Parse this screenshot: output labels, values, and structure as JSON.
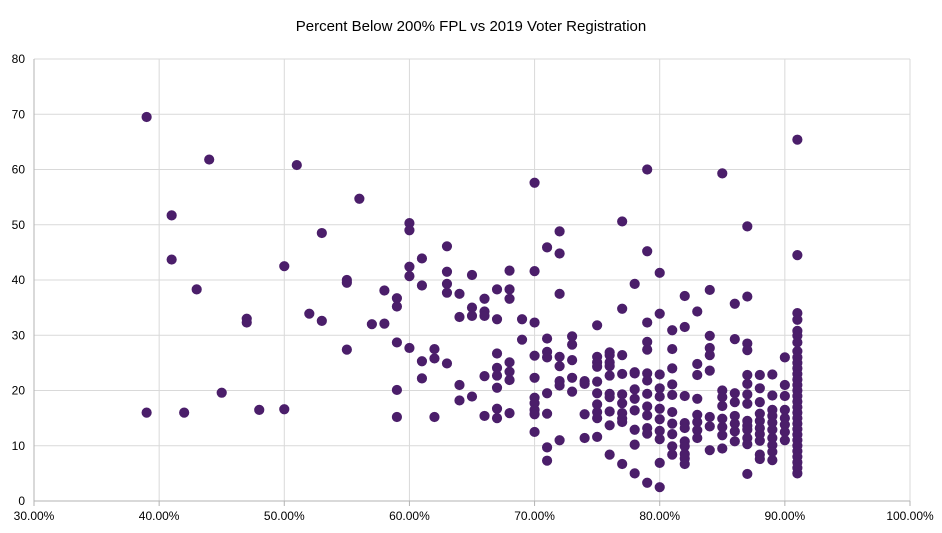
{
  "chart_data": {
    "type": "scatter",
    "title": "Percent Below 200% FPL vs 2019 Voter Registration",
    "xlabel": "",
    "ylabel": "",
    "xlim": [
      0.3,
      1.0
    ],
    "ylim": [
      0,
      80
    ],
    "x_ticks": [
      0.3,
      0.4,
      0.5,
      0.6,
      0.7,
      0.8,
      0.9,
      1.0
    ],
    "x_tick_labels": [
      "30.00%",
      "40.00%",
      "50.00%",
      "60.00%",
      "70.00%",
      "80.00%",
      "90.00%",
      "100.00%"
    ],
    "y_ticks": [
      0,
      10,
      20,
      30,
      40,
      50,
      60,
      70,
      80
    ],
    "y_tick_labels": [
      "0",
      "10",
      "20",
      "30",
      "40",
      "50",
      "60",
      "70",
      "80"
    ],
    "grid": true,
    "legend": "none",
    "marker_color": "#4b1e6a",
    "series": [
      {
        "points": [
          [
            0.39,
            69.5
          ],
          [
            0.39,
            16
          ],
          [
            0.41,
            51.7
          ],
          [
            0.41,
            43.7
          ],
          [
            0.42,
            16
          ],
          [
            0.43,
            38.3
          ],
          [
            0.44,
            61.8
          ],
          [
            0.45,
            19.6
          ],
          [
            0.47,
            33
          ],
          [
            0.47,
            32.3
          ],
          [
            0.48,
            16.5
          ],
          [
            0.5,
            42.5
          ],
          [
            0.5,
            16.6
          ],
          [
            0.51,
            60.8
          ],
          [
            0.52,
            33.9
          ],
          [
            0.53,
            48.5
          ],
          [
            0.53,
            32.6
          ],
          [
            0.55,
            40
          ],
          [
            0.55,
            39.5
          ],
          [
            0.55,
            27.4
          ],
          [
            0.56,
            54.7
          ],
          [
            0.57,
            32
          ],
          [
            0.58,
            38.1
          ],
          [
            0.58,
            32.1
          ],
          [
            0.59,
            36.7
          ],
          [
            0.59,
            35.2
          ],
          [
            0.59,
            28.7
          ],
          [
            0.59,
            20.1
          ],
          [
            0.59,
            15.2
          ],
          [
            0.6,
            50.3
          ],
          [
            0.6,
            49
          ],
          [
            0.6,
            42.4
          ],
          [
            0.6,
            40.7
          ],
          [
            0.6,
            27.7
          ],
          [
            0.61,
            43.9
          ],
          [
            0.61,
            39
          ],
          [
            0.61,
            25.3
          ],
          [
            0.61,
            22.2
          ],
          [
            0.62,
            27.5
          ],
          [
            0.62,
            25.8
          ],
          [
            0.62,
            15.2
          ],
          [
            0.63,
            46.1
          ],
          [
            0.63,
            41.5
          ],
          [
            0.63,
            39.3
          ],
          [
            0.63,
            37.7
          ],
          [
            0.63,
            24.9
          ],
          [
            0.64,
            37.5
          ],
          [
            0.64,
            33.3
          ],
          [
            0.64,
            21
          ],
          [
            0.64,
            18.2
          ],
          [
            0.65,
            40.9
          ],
          [
            0.65,
            35
          ],
          [
            0.65,
            33.5
          ],
          [
            0.65,
            18.9
          ],
          [
            0.66,
            36.6
          ],
          [
            0.66,
            34.3
          ],
          [
            0.66,
            33.5
          ],
          [
            0.66,
            22.6
          ],
          [
            0.66,
            15.4
          ],
          [
            0.67,
            38.3
          ],
          [
            0.67,
            32.9
          ],
          [
            0.67,
            26.7
          ],
          [
            0.67,
            24.1
          ],
          [
            0.67,
            22.7
          ],
          [
            0.67,
            20.5
          ],
          [
            0.67,
            16.7
          ],
          [
            0.67,
            15
          ],
          [
            0.68,
            41.7
          ],
          [
            0.68,
            38.3
          ],
          [
            0.68,
            36.6
          ],
          [
            0.68,
            25.1
          ],
          [
            0.68,
            23.4
          ],
          [
            0.68,
            21.9
          ],
          [
            0.68,
            15.9
          ],
          [
            0.69,
            32.9
          ],
          [
            0.69,
            29.2
          ],
          [
            0.7,
            57.6
          ],
          [
            0.7,
            41.6
          ],
          [
            0.7,
            32.3
          ],
          [
            0.7,
            26.3
          ],
          [
            0.7,
            22.3
          ],
          [
            0.7,
            18.7
          ],
          [
            0.7,
            17.7
          ],
          [
            0.7,
            16.5
          ],
          [
            0.7,
            15.7
          ],
          [
            0.7,
            12.5
          ],
          [
            0.71,
            45.9
          ],
          [
            0.71,
            29.4
          ],
          [
            0.71,
            27
          ],
          [
            0.71,
            26
          ],
          [
            0.71,
            19.5
          ],
          [
            0.71,
            15.8
          ],
          [
            0.71,
            9.7
          ],
          [
            0.71,
            7.3
          ],
          [
            0.72,
            48.8
          ],
          [
            0.72,
            44.8
          ],
          [
            0.72,
            37.5
          ],
          [
            0.72,
            26.1
          ],
          [
            0.72,
            24.4
          ],
          [
            0.72,
            21.7
          ],
          [
            0.72,
            20.9
          ],
          [
            0.72,
            11
          ],
          [
            0.73,
            29.8
          ],
          [
            0.73,
            28.3
          ],
          [
            0.73,
            25.5
          ],
          [
            0.73,
            22.3
          ],
          [
            0.73,
            19.8
          ],
          [
            0.74,
            21.7
          ],
          [
            0.74,
            21.2
          ],
          [
            0.74,
            15.7
          ],
          [
            0.74,
            11.4
          ],
          [
            0.75,
            31.8
          ],
          [
            0.75,
            26.1
          ],
          [
            0.75,
            25.1
          ],
          [
            0.75,
            24.3
          ],
          [
            0.75,
            21.6
          ],
          [
            0.75,
            19.5
          ],
          [
            0.75,
            17.5
          ],
          [
            0.75,
            16.1
          ],
          [
            0.75,
            15
          ],
          [
            0.75,
            11.6
          ],
          [
            0.76,
            26.9
          ],
          [
            0.76,
            26.4
          ],
          [
            0.76,
            25.1
          ],
          [
            0.76,
            24.4
          ],
          [
            0.76,
            22.7
          ],
          [
            0.76,
            19.4
          ],
          [
            0.76,
            18.8
          ],
          [
            0.76,
            16.2
          ],
          [
            0.76,
            13.7
          ],
          [
            0.76,
            8.4
          ],
          [
            0.77,
            50.6
          ],
          [
            0.77,
            34.8
          ],
          [
            0.77,
            26.4
          ],
          [
            0.77,
            23
          ],
          [
            0.77,
            19.3
          ],
          [
            0.77,
            17.7
          ],
          [
            0.77,
            15.9
          ],
          [
            0.77,
            14.9
          ],
          [
            0.77,
            14.3
          ],
          [
            0.77,
            6.7
          ],
          [
            0.78,
            39.3
          ],
          [
            0.78,
            23.3
          ],
          [
            0.78,
            23.1
          ],
          [
            0.78,
            20.2
          ],
          [
            0.78,
            18.5
          ],
          [
            0.78,
            16.4
          ],
          [
            0.78,
            12.9
          ],
          [
            0.78,
            10.2
          ],
          [
            0.78,
            5
          ],
          [
            0.79,
            60
          ],
          [
            0.79,
            45.2
          ],
          [
            0.79,
            32.3
          ],
          [
            0.79,
            28.8
          ],
          [
            0.79,
            27.4
          ],
          [
            0.79,
            23.1
          ],
          [
            0.79,
            21.8
          ],
          [
            0.79,
            19.4
          ],
          [
            0.79,
            17.1
          ],
          [
            0.79,
            15.5
          ],
          [
            0.79,
            13.2
          ],
          [
            0.79,
            12.2
          ],
          [
            0.79,
            3.3
          ],
          [
            0.8,
            41.3
          ],
          [
            0.8,
            33.9
          ],
          [
            0.8,
            22.9
          ],
          [
            0.8,
            20.4
          ],
          [
            0.8,
            18.9
          ],
          [
            0.8,
            16.7
          ],
          [
            0.8,
            14.8
          ],
          [
            0.8,
            12.7
          ],
          [
            0.8,
            11.2
          ],
          [
            0.8,
            6.9
          ],
          [
            0.8,
            2.5
          ],
          [
            0.81,
            30.9
          ],
          [
            0.81,
            27.5
          ],
          [
            0.81,
            24
          ],
          [
            0.81,
            21.1
          ],
          [
            0.81,
            19.2
          ],
          [
            0.81,
            16.1
          ],
          [
            0.81,
            14
          ],
          [
            0.81,
            12.1
          ],
          [
            0.81,
            9.9
          ],
          [
            0.81,
            8.4
          ],
          [
            0.82,
            37.1
          ],
          [
            0.82,
            31.5
          ],
          [
            0.82,
            19
          ],
          [
            0.82,
            14.1
          ],
          [
            0.82,
            13.2
          ],
          [
            0.82,
            10.8
          ],
          [
            0.82,
            9.9
          ],
          [
            0.82,
            8.5
          ],
          [
            0.82,
            7.7
          ],
          [
            0.82,
            6.7
          ],
          [
            0.83,
            34.3
          ],
          [
            0.83,
            24.8
          ],
          [
            0.83,
            22.8
          ],
          [
            0.83,
            18.5
          ],
          [
            0.83,
            15.6
          ],
          [
            0.83,
            14.3
          ],
          [
            0.83,
            12.8
          ],
          [
            0.83,
            11.4
          ],
          [
            0.84,
            38.2
          ],
          [
            0.84,
            29.9
          ],
          [
            0.84,
            27.7
          ],
          [
            0.84,
            26.4
          ],
          [
            0.84,
            23.6
          ],
          [
            0.84,
            15.2
          ],
          [
            0.84,
            13.5
          ],
          [
            0.84,
            9.2
          ],
          [
            0.85,
            59.3
          ],
          [
            0.85,
            20
          ],
          [
            0.85,
            18.8
          ],
          [
            0.85,
            17.2
          ],
          [
            0.85,
            14.9
          ],
          [
            0.85,
            13.4
          ],
          [
            0.85,
            11.9
          ],
          [
            0.85,
            9.5
          ],
          [
            0.86,
            35.7
          ],
          [
            0.86,
            29.3
          ],
          [
            0.86,
            19.5
          ],
          [
            0.86,
            17.9
          ],
          [
            0.86,
            15.4
          ],
          [
            0.86,
            14
          ],
          [
            0.86,
            12.6
          ],
          [
            0.86,
            10.8
          ],
          [
            0.87,
            49.7
          ],
          [
            0.87,
            37
          ],
          [
            0.87,
            28.5
          ],
          [
            0.87,
            27.3
          ],
          [
            0.87,
            22.8
          ],
          [
            0.87,
            21.2
          ],
          [
            0.87,
            19.3
          ],
          [
            0.87,
            17.6
          ],
          [
            0.87,
            14.5
          ],
          [
            0.87,
            13.6
          ],
          [
            0.87,
            12.9
          ],
          [
            0.87,
            11.4
          ],
          [
            0.87,
            10.3
          ],
          [
            0.87,
            4.9
          ],
          [
            0.88,
            22.8
          ],
          [
            0.88,
            20.4
          ],
          [
            0.88,
            17.9
          ],
          [
            0.88,
            15.8
          ],
          [
            0.88,
            14.5
          ],
          [
            0.88,
            13.2
          ],
          [
            0.88,
            12.1
          ],
          [
            0.88,
            10.9
          ],
          [
            0.88,
            8.4
          ],
          [
            0.88,
            7.6
          ],
          [
            0.89,
            22.9
          ],
          [
            0.89,
            19.1
          ],
          [
            0.89,
            16.5
          ],
          [
            0.89,
            15.4
          ],
          [
            0.89,
            14.2
          ],
          [
            0.89,
            12.9
          ],
          [
            0.89,
            11.4
          ],
          [
            0.89,
            10.1
          ],
          [
            0.89,
            8.9
          ],
          [
            0.89,
            7.4
          ],
          [
            0.9,
            26
          ],
          [
            0.9,
            21
          ],
          [
            0.9,
            19
          ],
          [
            0.9,
            16.5
          ],
          [
            0.9,
            15
          ],
          [
            0.9,
            13.8
          ],
          [
            0.9,
            12.5
          ],
          [
            0.9,
            11
          ],
          [
            0.91,
            65.4
          ],
          [
            0.91,
            44.5
          ],
          [
            0.91,
            34
          ],
          [
            0.91,
            32.8
          ],
          [
            0.91,
            30.8
          ],
          [
            0.91,
            29.9
          ],
          [
            0.91,
            28.7
          ],
          [
            0.91,
            27.1
          ],
          [
            0.91,
            26
          ],
          [
            0.91,
            25
          ],
          [
            0.91,
            24
          ],
          [
            0.91,
            23
          ],
          [
            0.91,
            22
          ],
          [
            0.91,
            21
          ],
          [
            0.91,
            20
          ],
          [
            0.91,
            19
          ],
          [
            0.91,
            18
          ],
          [
            0.91,
            17
          ],
          [
            0.91,
            16
          ],
          [
            0.91,
            15
          ],
          [
            0.91,
            14
          ],
          [
            0.91,
            13
          ],
          [
            0.91,
            12
          ],
          [
            0.91,
            11
          ],
          [
            0.91,
            10
          ],
          [
            0.91,
            9
          ],
          [
            0.91,
            8
          ],
          [
            0.91,
            7
          ],
          [
            0.91,
            6
          ],
          [
            0.91,
            5
          ]
        ]
      }
    ]
  }
}
